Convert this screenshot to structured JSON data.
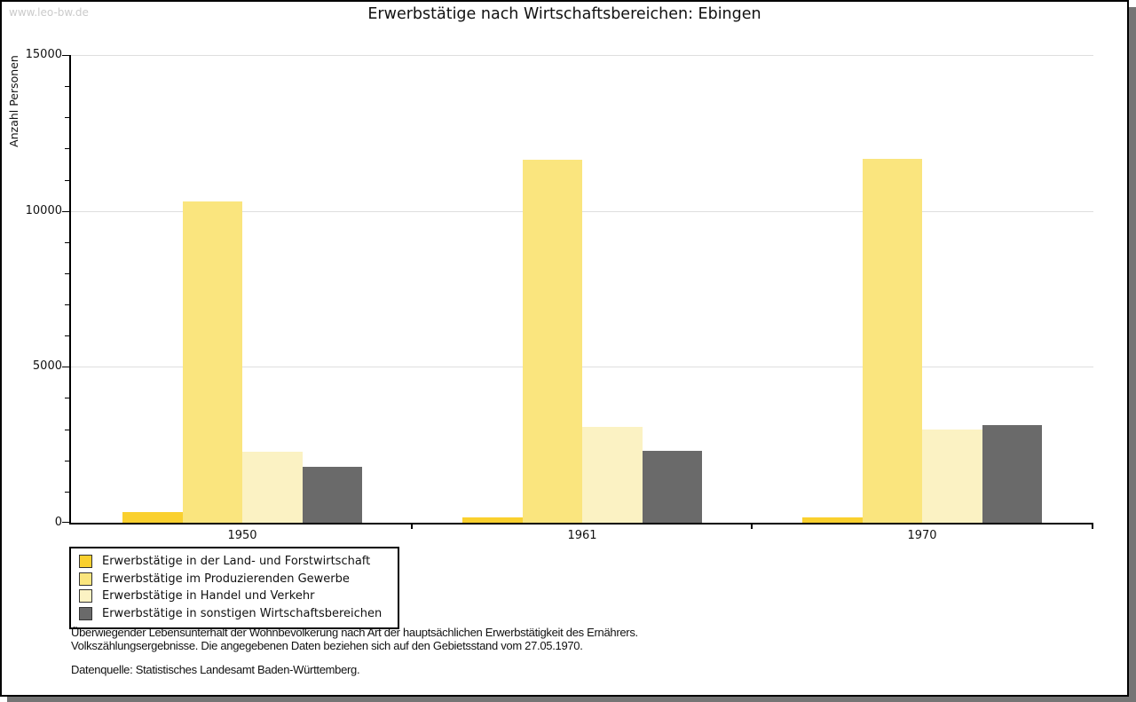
{
  "watermark": "www.leo-bw.de",
  "title": "Erwerbstätige nach Wirtschaftsbereichen: Ebingen",
  "chart_data": {
    "type": "bar",
    "title": "Erwerbstätige nach Wirtschaftsbereichen: Ebingen",
    "ylabel": "Anzahl Personen",
    "xlabel": "",
    "ylim": [
      0,
      15000
    ],
    "yticks_major": [
      0,
      5000,
      10000,
      15000
    ],
    "ytick_minor_step": 1000,
    "gridlines": [
      5000,
      10000,
      15000
    ],
    "grid": true,
    "legend_position": "bottom-left",
    "categories": [
      "1950",
      "1961",
      "1970"
    ],
    "series": [
      {
        "name": "Erwerbstätige in der Land- und Forstwirtschaft",
        "color": "#FAD02E",
        "values": [
          340,
          180,
          160
        ]
      },
      {
        "name": "Erwerbstätige im Produzierenden Gewerbe",
        "color": "#FAE57E",
        "values": [
          10300,
          11630,
          11670
        ]
      },
      {
        "name": "Erwerbstätige in Handel und Verkehr",
        "color": "#FBF2C3",
        "values": [
          2270,
          3080,
          2990
        ]
      },
      {
        "name": "Erwerbstätige in sonstigen Wirtschaftsbereichen",
        "color": "#6A6A6A",
        "values": [
          1800,
          2320,
          3130
        ]
      }
    ]
  },
  "footnote": {
    "line1": "Überwiegender Lebensunterhalt der Wohnbevölkerung nach Art der hauptsächlichen Erwerbstätigkeit des Ernährers.",
    "line2": "Volkszählungsergebnisse. Die angegebenen Daten beziehen sich auf den Gebietsstand vom 27.05.1970.",
    "source": "Datenquelle: Statistisches Landesamt Baden-Württemberg."
  }
}
